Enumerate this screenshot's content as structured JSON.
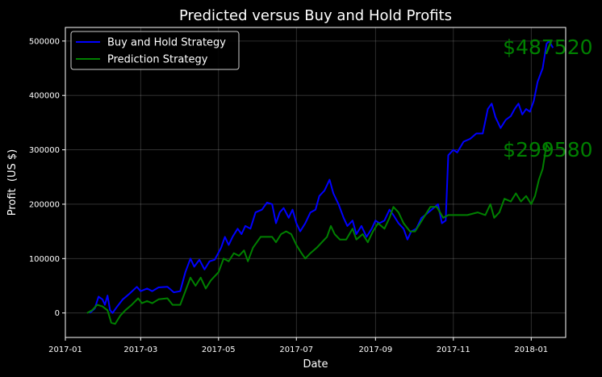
{
  "chart_data": {
    "type": "line",
    "title": "Predicted versus Buy and Hold Profits",
    "xlabel": "Date",
    "ylabel": "Profit  (US $)",
    "grid": true,
    "legend_placement": "top-left",
    "x_ticks": [
      "2017-01",
      "2017-03",
      "2017-05",
      "2017-07",
      "2017-09",
      "2017-11",
      "2018-01"
    ],
    "y_ticks": [
      0,
      100000,
      200000,
      300000,
      400000,
      500000
    ],
    "xlim": [
      "2017-01-01",
      "2018-01-28"
    ],
    "ylim": [
      -45000,
      525000
    ],
    "series": [
      {
        "name": "Buy and Hold Strategy",
        "color": "#0000ff",
        "points": [
          [
            "2017-01-20",
            0
          ],
          [
            "2017-01-24",
            8000
          ],
          [
            "2017-01-27",
            30000
          ],
          [
            "2017-01-30",
            25000
          ],
          [
            "2017-02-01",
            15000
          ],
          [
            "2017-02-03",
            32000
          ],
          [
            "2017-02-05",
            5000
          ],
          [
            "2017-02-07",
            0
          ],
          [
            "2017-02-10",
            10000
          ],
          [
            "2017-02-15",
            25000
          ],
          [
            "2017-02-20",
            35000
          ],
          [
            "2017-02-26",
            48000
          ],
          [
            "2017-03-01",
            40000
          ],
          [
            "2017-03-06",
            45000
          ],
          [
            "2017-03-10",
            40000
          ],
          [
            "2017-03-15",
            47000
          ],
          [
            "2017-03-22",
            48000
          ],
          [
            "2017-03-27",
            38000
          ],
          [
            "2017-04-01",
            40000
          ],
          [
            "2017-04-05",
            75000
          ],
          [
            "2017-04-09",
            100000
          ],
          [
            "2017-04-12",
            85000
          ],
          [
            "2017-04-16",
            98000
          ],
          [
            "2017-04-20",
            80000
          ],
          [
            "2017-04-24",
            95000
          ],
          [
            "2017-04-28",
            98000
          ],
          [
            "2017-05-03",
            120000
          ],
          [
            "2017-05-06",
            140000
          ],
          [
            "2017-05-09",
            125000
          ],
          [
            "2017-05-12",
            140000
          ],
          [
            "2017-05-16",
            155000
          ],
          [
            "2017-05-19",
            145000
          ],
          [
            "2017-05-22",
            160000
          ],
          [
            "2017-05-26",
            155000
          ],
          [
            "2017-05-30",
            185000
          ],
          [
            "2017-06-04",
            190000
          ],
          [
            "2017-06-08",
            203000
          ],
          [
            "2017-06-12",
            200000
          ],
          [
            "2017-06-15",
            165000
          ],
          [
            "2017-06-18",
            185000
          ],
          [
            "2017-06-21",
            193000
          ],
          [
            "2017-06-25",
            175000
          ],
          [
            "2017-06-28",
            190000
          ],
          [
            "2017-07-01",
            165000
          ],
          [
            "2017-07-04",
            150000
          ],
          [
            "2017-07-08",
            165000
          ],
          [
            "2017-07-12",
            185000
          ],
          [
            "2017-07-16",
            190000
          ],
          [
            "2017-07-19",
            215000
          ],
          [
            "2017-07-23",
            225000
          ],
          [
            "2017-07-27",
            245000
          ],
          [
            "2017-07-30",
            220000
          ],
          [
            "2017-08-03",
            200000
          ],
          [
            "2017-08-07",
            175000
          ],
          [
            "2017-08-10",
            160000
          ],
          [
            "2017-08-14",
            170000
          ],
          [
            "2017-08-17",
            145000
          ],
          [
            "2017-08-21",
            160000
          ],
          [
            "2017-08-25",
            140000
          ],
          [
            "2017-08-29",
            155000
          ],
          [
            "2017-09-01",
            170000
          ],
          [
            "2017-09-04",
            165000
          ],
          [
            "2017-09-08",
            170000
          ],
          [
            "2017-09-12",
            190000
          ],
          [
            "2017-09-15",
            180000
          ],
          [
            "2017-09-19",
            165000
          ],
          [
            "2017-09-23",
            155000
          ],
          [
            "2017-09-26",
            135000
          ],
          [
            "2017-09-29",
            150000
          ],
          [
            "2017-10-03",
            155000
          ],
          [
            "2017-10-07",
            175000
          ],
          [
            "2017-10-10",
            180000
          ],
          [
            "2017-10-15",
            190000
          ],
          [
            "2017-10-20",
            200000
          ],
          [
            "2017-10-23",
            165000
          ],
          [
            "2017-10-26",
            170000
          ],
          [
            "2017-10-28",
            290000
          ],
          [
            "2017-11-01",
            300000
          ],
          [
            "2017-11-04",
            295000
          ],
          [
            "2017-11-09",
            315000
          ],
          [
            "2017-11-14",
            320000
          ],
          [
            "2017-11-19",
            330000
          ],
          [
            "2017-11-24",
            330000
          ],
          [
            "2017-11-28",
            375000
          ],
          [
            "2017-12-01",
            385000
          ],
          [
            "2017-12-04",
            360000
          ],
          [
            "2017-12-08",
            340000
          ],
          [
            "2017-12-12",
            355000
          ],
          [
            "2017-12-16",
            362000
          ],
          [
            "2017-12-19",
            375000
          ],
          [
            "2017-12-22",
            385000
          ],
          [
            "2017-12-25",
            365000
          ],
          [
            "2017-12-28",
            375000
          ],
          [
            "2017-12-31",
            370000
          ],
          [
            "2018-01-03",
            390000
          ],
          [
            "2018-01-06",
            425000
          ],
          [
            "2018-01-10",
            450000
          ],
          [
            "2018-01-13",
            495000
          ],
          [
            "2018-01-15",
            500000
          ],
          [
            "2018-01-18",
            487520
          ]
        ]
      },
      {
        "name": "Prediction Strategy",
        "color": "#008000",
        "points": [
          [
            "2017-01-18",
            0
          ],
          [
            "2017-01-22",
            5000
          ],
          [
            "2017-01-26",
            15000
          ],
          [
            "2017-01-30",
            12000
          ],
          [
            "2017-02-03",
            5000
          ],
          [
            "2017-02-06",
            -18000
          ],
          [
            "2017-02-09",
            -20000
          ],
          [
            "2017-02-13",
            -5000
          ],
          [
            "2017-02-17",
            5000
          ],
          [
            "2017-02-22",
            15000
          ],
          [
            "2017-02-27",
            27000
          ],
          [
            "2017-03-02",
            18000
          ],
          [
            "2017-03-06",
            22000
          ],
          [
            "2017-03-10",
            18000
          ],
          [
            "2017-03-15",
            25000
          ],
          [
            "2017-03-22",
            27000
          ],
          [
            "2017-03-26",
            15000
          ],
          [
            "2017-04-01",
            15000
          ],
          [
            "2017-04-05",
            40000
          ],
          [
            "2017-04-09",
            65000
          ],
          [
            "2017-04-13",
            50000
          ],
          [
            "2017-04-17",
            65000
          ],
          [
            "2017-04-21",
            45000
          ],
          [
            "2017-04-25",
            60000
          ],
          [
            "2017-05-01",
            75000
          ],
          [
            "2017-05-05",
            100000
          ],
          [
            "2017-05-09",
            95000
          ],
          [
            "2017-05-13",
            110000
          ],
          [
            "2017-05-17",
            105000
          ],
          [
            "2017-05-21",
            115000
          ],
          [
            "2017-05-24",
            95000
          ],
          [
            "2017-05-28",
            120000
          ],
          [
            "2017-06-03",
            140000
          ],
          [
            "2017-06-08",
            140000
          ],
          [
            "2017-06-12",
            140000
          ],
          [
            "2017-06-15",
            130000
          ],
          [
            "2017-06-19",
            145000
          ],
          [
            "2017-06-23",
            150000
          ],
          [
            "2017-06-27",
            145000
          ],
          [
            "2017-07-01",
            125000
          ],
          [
            "2017-07-05",
            110000
          ],
          [
            "2017-07-08",
            100000
          ],
          [
            "2017-07-12",
            110000
          ],
          [
            "2017-07-17",
            120000
          ],
          [
            "2017-07-21",
            130000
          ],
          [
            "2017-07-25",
            140000
          ],
          [
            "2017-07-28",
            160000
          ],
          [
            "2017-07-31",
            145000
          ],
          [
            "2017-08-04",
            135000
          ],
          [
            "2017-08-09",
            135000
          ],
          [
            "2017-08-14",
            155000
          ],
          [
            "2017-08-17",
            135000
          ],
          [
            "2017-08-22",
            145000
          ],
          [
            "2017-08-26",
            130000
          ],
          [
            "2017-08-30",
            150000
          ],
          [
            "2017-09-03",
            165000
          ],
          [
            "2017-09-08",
            155000
          ],
          [
            "2017-09-12",
            175000
          ],
          [
            "2017-09-15",
            195000
          ],
          [
            "2017-09-19",
            185000
          ],
          [
            "2017-09-23",
            165000
          ],
          [
            "2017-09-28",
            150000
          ],
          [
            "2017-10-02",
            150000
          ],
          [
            "2017-10-06",
            165000
          ],
          [
            "2017-10-10",
            180000
          ],
          [
            "2017-10-14",
            195000
          ],
          [
            "2017-10-19",
            195000
          ],
          [
            "2017-10-24",
            175000
          ],
          [
            "2017-10-28",
            180000
          ],
          [
            "2017-11-05",
            180000
          ],
          [
            "2017-11-12",
            180000
          ],
          [
            "2017-11-20",
            185000
          ],
          [
            "2017-11-26",
            180000
          ],
          [
            "2017-11-30",
            200000
          ],
          [
            "2017-12-03",
            175000
          ],
          [
            "2017-12-07",
            185000
          ],
          [
            "2017-12-11",
            210000
          ],
          [
            "2017-12-16",
            205000
          ],
          [
            "2017-12-20",
            220000
          ],
          [
            "2017-12-24",
            205000
          ],
          [
            "2017-12-28",
            215000
          ],
          [
            "2018-01-01",
            200000
          ],
          [
            "2018-01-04",
            215000
          ],
          [
            "2018-01-07",
            245000
          ],
          [
            "2018-01-10",
            265000
          ],
          [
            "2018-01-13",
            310000
          ],
          [
            "2018-01-16",
            299580
          ]
        ]
      }
    ],
    "annotations": [
      {
        "text": "$487520",
        "x": "2018-01-14",
        "y": 487520,
        "color": "#008000"
      },
      {
        "text": "$299580",
        "x": "2018-01-14",
        "y": 299580,
        "color": "#008000"
      }
    ]
  }
}
